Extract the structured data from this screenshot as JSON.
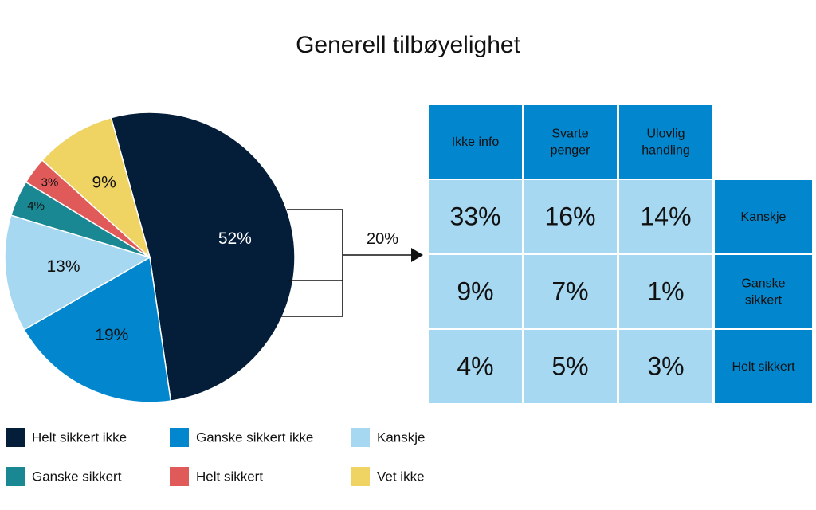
{
  "chart_data": {
    "type": "pie",
    "title": "Generell tilbøyelighet",
    "slices": [
      {
        "name": "Helt sikkert ikke",
        "value": 52,
        "label": "52%",
        "color": "#041e3a"
      },
      {
        "name": "Ganske sikkert ikke",
        "value": 19,
        "label": "19%",
        "color": "#0287cf"
      },
      {
        "name": "Kanskje",
        "value": 13,
        "label": "13%",
        "color": "#a7d8f1"
      },
      {
        "name": "Ganske sikkert",
        "value": 4,
        "label": "4%",
        "color": "#1a8892"
      },
      {
        "name": "Helt sikkert",
        "value": 3,
        "label": "3%",
        "color": "#e15a5a"
      },
      {
        "name": "Vet ikke",
        "value": 9,
        "label": "9%",
        "color": "#efd363"
      }
    ],
    "bracket": {
      "label": "20%",
      "covers": [
        "Kanskje",
        "Ganske sikkert",
        "Helt sikkert"
      ]
    },
    "table": {
      "columns": [
        [
          "Ikke info"
        ],
        [
          "Svarte",
          "penger"
        ],
        [
          "Ulovlig",
          "handling"
        ]
      ],
      "rows": [
        {
          "label": [
            "Kanskje"
          ],
          "values": [
            "33%",
            "16%",
            "14%"
          ]
        },
        {
          "label": [
            "Ganske",
            "sikkert"
          ],
          "values": [
            "9%",
            "7%",
            "1%"
          ]
        },
        {
          "label": [
            "Helt sikkert"
          ],
          "values": [
            "4%",
            "5%",
            "3%"
          ]
        }
      ]
    },
    "legend": [
      "Helt sikkert ikke",
      "Ganske sikkert ikke",
      "Kanskje",
      "Ganske sikkert",
      "Helt sikkert",
      "Vet ikke"
    ],
    "legend_placement": "bottom",
    "colors": {
      "header_bg": "#0287cf",
      "cell_bg": "#a7d8f1",
      "border": "#ffffff"
    }
  }
}
